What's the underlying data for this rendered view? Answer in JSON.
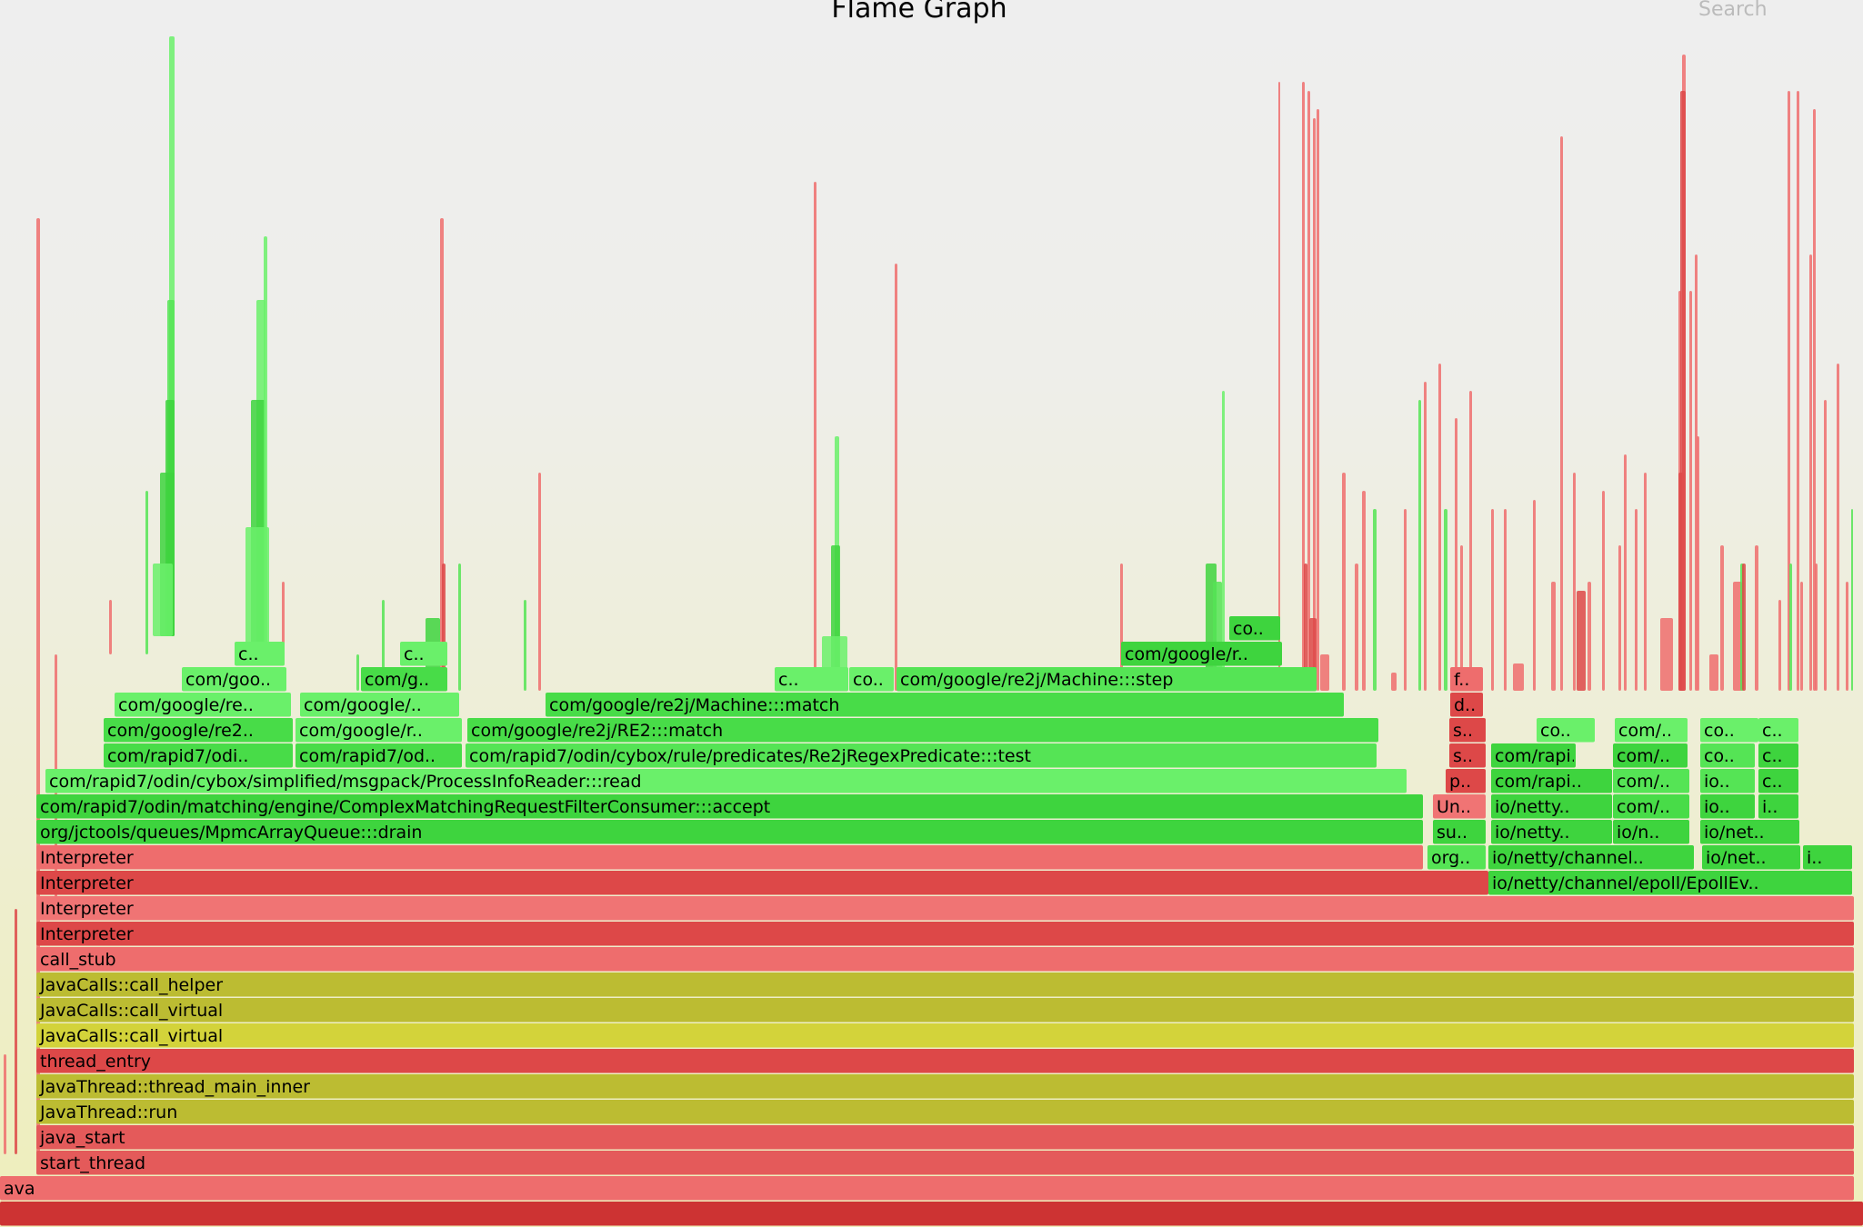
{
  "title": "Flame Graph",
  "search_label": "Search",
  "colors": {
    "red_1": "#e45a5a",
    "red_2": "#ee6d6d",
    "red_3": "#dd4848",
    "red_4": "#f07474",
    "red_5": "#cd3333",
    "olive_1": "#bcbc32",
    "olive_2": "#d3d33a",
    "green_1": "#3ed43e",
    "green_2": "#55e455",
    "green_3": "#6af06a",
    "green_4": "#48dc48"
  },
  "frames": [
    {
      "label": "",
      "color": "red_5"
    },
    {
      "label": "ava",
      "color": "red_2"
    },
    {
      "label": "start_thread",
      "color": "red_1"
    },
    {
      "label": "java_start",
      "color": "red_1"
    },
    {
      "label": "JavaThread::run",
      "color": "olive_1"
    },
    {
      "label": "JavaThread::thread_main_inner",
      "color": "olive_1"
    },
    {
      "label": "thread_entry",
      "color": "red_3"
    },
    {
      "label": "JavaCalls::call_virtual",
      "color": "olive_2"
    },
    {
      "label": "JavaCalls::call_virtual",
      "color": "olive_1"
    },
    {
      "label": "JavaCalls::call_helper",
      "color": "olive_1"
    },
    {
      "label": "call_stub",
      "color": "red_2"
    },
    {
      "label": "Interpreter",
      "color": "red_3"
    },
    {
      "label": "Interpreter",
      "color": "red_4"
    },
    {
      "label": "Interpreter",
      "color": "red_3"
    },
    {
      "label": "io/netty/channel/epoll/EpollEv..",
      "color": "green_1"
    },
    {
      "label": "Interpreter",
      "color": "red_2"
    },
    {
      "label": "org..",
      "color": "green_2"
    },
    {
      "label": "io/netty/channel..",
      "color": "green_1"
    },
    {
      "label": "io/net..",
      "color": "green_1"
    },
    {
      "label": "i..",
      "color": "green_1"
    },
    {
      "label": "org/jctools/queues/MpmcArrayQueue:::drain",
      "color": "green_1"
    },
    {
      "label": "su..",
      "color": "green_1"
    },
    {
      "label": "io/netty..",
      "color": "green_1"
    },
    {
      "label": "io/n..",
      "color": "green_1"
    },
    {
      "label": "io/net..",
      "color": "green_1"
    },
    {
      "label": "com/rapid7/odin/matching/engine/ComplexMatchingRequestFilterConsumer:::accept",
      "color": "green_1"
    },
    {
      "label": "Un..",
      "color": "red_4"
    },
    {
      "label": "io/netty..",
      "color": "green_1"
    },
    {
      "label": "com/..",
      "color": "green_4"
    },
    {
      "label": "io..",
      "color": "green_1"
    },
    {
      "label": "i..",
      "color": "green_1"
    },
    {
      "label": "com/rapid7/odin/cybox/simplified/msgpack/ProcessInfoReader:::read",
      "color": "green_3"
    },
    {
      "label": "p..",
      "color": "red_3"
    },
    {
      "label": "com/rapi..",
      "color": "green_1"
    },
    {
      "label": "com/..",
      "color": "green_2"
    },
    {
      "label": "io..",
      "color": "green_2"
    },
    {
      "label": "c..",
      "color": "green_1"
    },
    {
      "label": "com/rapid7/odi..",
      "color": "green_4"
    },
    {
      "label": "com/rapid7/od..",
      "color": "green_4"
    },
    {
      "label": "com/rapid7/odin/cybox/rule/predicates/Re2jRegexPredicate:::test",
      "color": "green_2"
    },
    {
      "label": "s..",
      "color": "red_3"
    },
    {
      "label": "com/rapi..",
      "color": "green_1"
    },
    {
      "label": "com/..",
      "color": "green_1"
    },
    {
      "label": "co..",
      "color": "green_2"
    },
    {
      "label": "c..",
      "color": "green_1"
    },
    {
      "label": "com/google/re2..",
      "color": "green_4"
    },
    {
      "label": "com/google/r..",
      "color": "green_3"
    },
    {
      "label": "com/google/re2j/RE2:::match",
      "color": "green_4"
    },
    {
      "label": "s..",
      "color": "red_3"
    },
    {
      "label": "co..",
      "color": "green_3"
    },
    {
      "label": "com/..",
      "color": "green_3"
    },
    {
      "label": "co..",
      "color": "green_3"
    },
    {
      "label": "c..",
      "color": "green_3"
    },
    {
      "label": "com/google/re..",
      "color": "green_3"
    },
    {
      "label": "com/google/..",
      "color": "green_3"
    },
    {
      "label": "com/google/re2j/Machine:::match",
      "color": "green_4"
    },
    {
      "label": "d..",
      "color": "red_3"
    },
    {
      "label": "com/goo..",
      "color": "green_3"
    },
    {
      "label": "com/g..",
      "color": "green_4"
    },
    {
      "label": "c..",
      "color": "green_3"
    },
    {
      "label": "co..",
      "color": "green_3"
    },
    {
      "label": "com/google/re2j/Machine:::step",
      "color": "green_2"
    },
    {
      "label": "f..",
      "color": "red_2"
    },
    {
      "label": "c..",
      "color": "green_3"
    },
    {
      "label": "c..",
      "color": "green_3"
    },
    {
      "label": "com/google/r..",
      "color": "green_1"
    },
    {
      "label": "co..",
      "color": "green_1"
    }
  ]
}
